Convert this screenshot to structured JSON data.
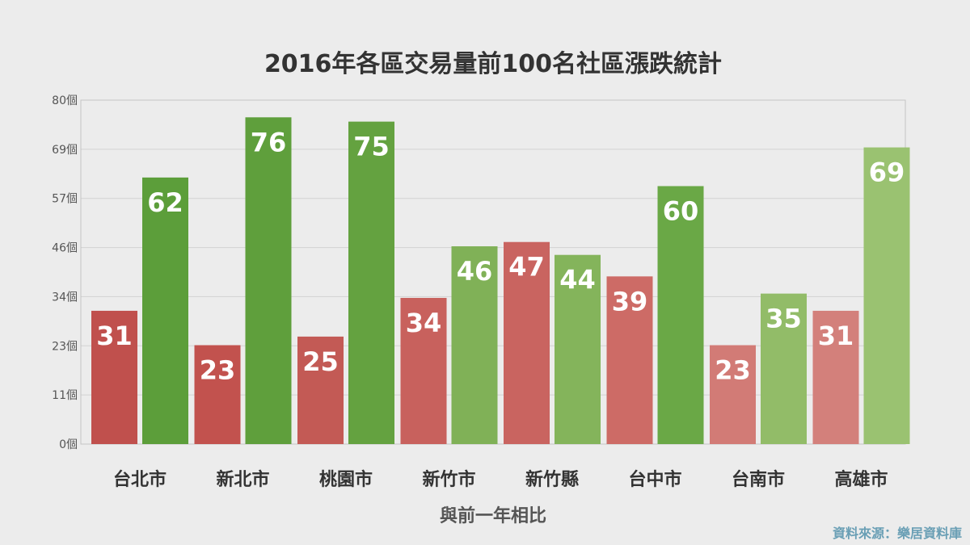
{
  "chart_data": {
    "type": "bar",
    "title": "2016年各區交易量前100名社區漲跌統計",
    "xlabel": "與前一年相比",
    "ylabel": "",
    "ylim": [
      0,
      80
    ],
    "yticks": [
      "0個",
      "11個",
      "23個",
      "34個",
      "46個",
      "57個",
      "69個",
      "80個"
    ],
    "categories": [
      "台北市",
      "新北市",
      "桃園市",
      "新竹市",
      "新竹縣",
      "台中市",
      "台南市",
      "高雄市"
    ],
    "series": [
      {
        "values": [
          31,
          23,
          25,
          34,
          47,
          39,
          23,
          31
        ],
        "colors": [
          "#c0504d",
          "#c2524e",
          "#c35a55",
          "#c8615d",
          "#c96460",
          "#cd6b66",
          "#d27b76",
          "#d3807b"
        ]
      },
      {
        "values": [
          62,
          76,
          75,
          46,
          44,
          60,
          35,
          69
        ],
        "colors": [
          "#5c9e3a",
          "#5f9f3c",
          "#64a240",
          "#80b157",
          "#84b45b",
          "#6aa846",
          "#92bc68",
          "#9ac271"
        ]
      }
    ],
    "grid": true,
    "legend": "none"
  },
  "source": "資料來源：樂居資料庫"
}
